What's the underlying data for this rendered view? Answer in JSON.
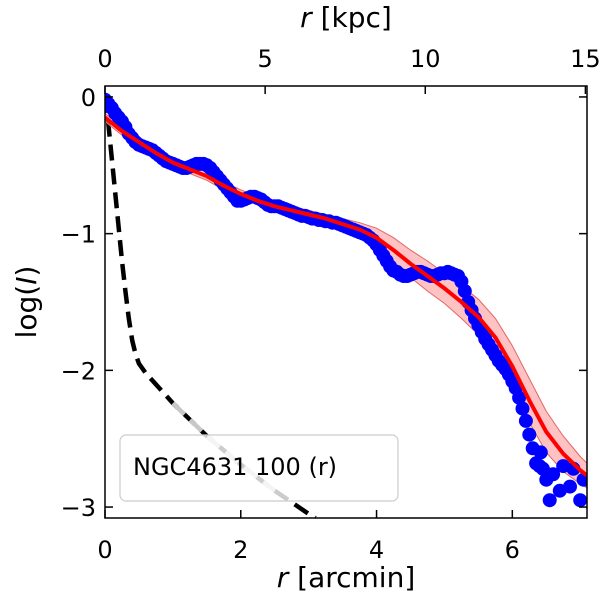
{
  "chart_data": {
    "type": "scatter",
    "title": "",
    "xlabel": "r [arcmin]",
    "xlabel_var": "r",
    "xlabel_unit": " [arcmin]",
    "x2label": "r [kpc]",
    "x2label_var": "r",
    "x2label_unit": " [kpc]",
    "ylabel": "log(I)",
    "ylabel_pre": "log(",
    "ylabel_var": "I",
    "ylabel_post": ")",
    "xlim": [
      0,
      7.1
    ],
    "ylim": [
      -3.08,
      0.08
    ],
    "x2lim": [
      0,
      15.05
    ],
    "xticks": [
      0,
      2,
      4,
      6
    ],
    "xtick_labels": [
      "0",
      "2",
      "4",
      "6"
    ],
    "x2ticks": [
      0,
      5,
      10,
      15
    ],
    "x2tick_labels": [
      "0",
      "5",
      "10",
      "15"
    ],
    "yticks": [
      0,
      -1,
      -2,
      -3
    ],
    "ytick_labels": [
      "0",
      "−1",
      "−2",
      "−3"
    ],
    "grid": false,
    "legend": {
      "text": "NGC4631 100 (r)",
      "placement": "lower-left"
    },
    "series": [
      {
        "role": "observed",
        "style": "markers",
        "color": "#0000ff",
        "points": [
          [
            0.0,
            -0.02
          ],
          [
            0.05,
            -0.05
          ],
          [
            0.1,
            -0.08
          ],
          [
            0.15,
            -0.12
          ],
          [
            0.2,
            -0.15
          ],
          [
            0.25,
            -0.18
          ],
          [
            0.3,
            -0.22
          ],
          [
            0.35,
            -0.27
          ],
          [
            0.4,
            -0.3
          ],
          [
            0.45,
            -0.33
          ],
          [
            0.5,
            -0.35
          ],
          [
            0.55,
            -0.36
          ],
          [
            0.6,
            -0.37
          ],
          [
            0.65,
            -0.38
          ],
          [
            0.7,
            -0.39
          ],
          [
            0.75,
            -0.41
          ],
          [
            0.8,
            -0.43
          ],
          [
            0.85,
            -0.45
          ],
          [
            0.9,
            -0.47
          ],
          [
            0.95,
            -0.48
          ],
          [
            1.0,
            -0.49
          ],
          [
            1.05,
            -0.5
          ],
          [
            1.1,
            -0.51
          ],
          [
            1.15,
            -0.52
          ],
          [
            1.2,
            -0.52
          ],
          [
            1.25,
            -0.51
          ],
          [
            1.3,
            -0.5
          ],
          [
            1.35,
            -0.49
          ],
          [
            1.4,
            -0.49
          ],
          [
            1.45,
            -0.49
          ],
          [
            1.5,
            -0.5
          ],
          [
            1.55,
            -0.52
          ],
          [
            1.6,
            -0.55
          ],
          [
            1.65,
            -0.58
          ],
          [
            1.7,
            -0.61
          ],
          [
            1.75,
            -0.64
          ],
          [
            1.8,
            -0.67
          ],
          [
            1.85,
            -0.7
          ],
          [
            1.9,
            -0.73
          ],
          [
            1.95,
            -0.76
          ],
          [
            2.0,
            -0.76
          ],
          [
            2.05,
            -0.75
          ],
          [
            2.1,
            -0.74
          ],
          [
            2.15,
            -0.73
          ],
          [
            2.2,
            -0.73
          ],
          [
            2.25,
            -0.74
          ],
          [
            2.3,
            -0.75
          ],
          [
            2.35,
            -0.77
          ],
          [
            2.4,
            -0.79
          ],
          [
            2.45,
            -0.8
          ],
          [
            2.5,
            -0.8
          ],
          [
            2.55,
            -0.8
          ],
          [
            2.6,
            -0.81
          ],
          [
            2.65,
            -0.82
          ],
          [
            2.7,
            -0.83
          ],
          [
            2.75,
            -0.84
          ],
          [
            2.8,
            -0.85
          ],
          [
            2.85,
            -0.86
          ],
          [
            2.9,
            -0.87
          ],
          [
            2.95,
            -0.87
          ],
          [
            3.0,
            -0.88
          ],
          [
            3.05,
            -0.89
          ],
          [
            3.1,
            -0.89
          ],
          [
            3.15,
            -0.9
          ],
          [
            3.2,
            -0.9
          ],
          [
            3.25,
            -0.91
          ],
          [
            3.3,
            -0.91
          ],
          [
            3.35,
            -0.92
          ],
          [
            3.4,
            -0.92
          ],
          [
            3.45,
            -0.93
          ],
          [
            3.5,
            -0.94
          ],
          [
            3.55,
            -0.95
          ],
          [
            3.6,
            -0.96
          ],
          [
            3.65,
            -0.97
          ],
          [
            3.7,
            -0.98
          ],
          [
            3.75,
            -0.99
          ],
          [
            3.8,
            -1.0
          ],
          [
            3.85,
            -1.01
          ],
          [
            3.9,
            -1.03
          ],
          [
            3.95,
            -1.05
          ],
          [
            4.0,
            -1.08
          ],
          [
            4.05,
            -1.12
          ],
          [
            4.1,
            -1.16
          ],
          [
            4.15,
            -1.2
          ],
          [
            4.2,
            -1.24
          ],
          [
            4.25,
            -1.27
          ],
          [
            4.3,
            -1.28
          ],
          [
            4.35,
            -1.3
          ],
          [
            4.4,
            -1.31
          ],
          [
            4.45,
            -1.31
          ],
          [
            4.5,
            -1.3
          ],
          [
            4.55,
            -1.29
          ],
          [
            4.6,
            -1.28
          ],
          [
            4.65,
            -1.28
          ],
          [
            4.7,
            -1.29
          ],
          [
            4.75,
            -1.3
          ],
          [
            4.8,
            -1.31
          ],
          [
            4.85,
            -1.31
          ],
          [
            4.9,
            -1.3
          ],
          [
            4.95,
            -1.29
          ],
          [
            5.0,
            -1.29
          ],
          [
            5.05,
            -1.28
          ],
          [
            5.1,
            -1.29
          ],
          [
            5.15,
            -1.3
          ],
          [
            5.2,
            -1.31
          ],
          [
            5.25,
            -1.35
          ],
          [
            5.3,
            -1.42
          ],
          [
            5.35,
            -1.5
          ],
          [
            5.4,
            -1.56
          ],
          [
            5.45,
            -1.62
          ],
          [
            5.5,
            -1.67
          ],
          [
            5.55,
            -1.72
          ],
          [
            5.6,
            -1.77
          ],
          [
            5.65,
            -1.81
          ],
          [
            5.7,
            -1.85
          ],
          [
            5.75,
            -1.89
          ],
          [
            5.8,
            -1.93
          ],
          [
            5.85,
            -1.96
          ],
          [
            5.9,
            -1.99
          ],
          [
            5.95,
            -2.03
          ],
          [
            6.0,
            -2.08
          ],
          [
            6.05,
            -2.13
          ],
          [
            6.1,
            -2.2
          ],
          [
            6.15,
            -2.28
          ],
          [
            6.2,
            -2.37
          ],
          [
            6.25,
            -2.47
          ],
          [
            6.3,
            -2.57
          ],
          [
            6.35,
            -2.68
          ],
          [
            6.4,
            -2.7
          ],
          [
            6.45,
            -2.72
          ],
          [
            6.5,
            -2.8
          ],
          [
            6.55,
            -2.95
          ],
          [
            6.6,
            -2.76
          ],
          [
            6.7,
            -2.88
          ],
          [
            6.75,
            -2.7
          ],
          [
            6.85,
            -2.85
          ],
          [
            6.9,
            -2.72
          ],
          [
            7.0,
            -2.95
          ],
          [
            7.05,
            -2.8
          ],
          [
            6.42,
            -2.6
          ]
        ]
      },
      {
        "role": "model",
        "style": "line",
        "color": "#ff0000",
        "x": [
          0.0,
          0.25,
          0.5,
          0.75,
          1.0,
          1.25,
          1.5,
          1.75,
          2.0,
          2.25,
          2.5,
          2.75,
          3.0,
          3.25,
          3.5,
          3.75,
          4.0,
          4.25,
          4.5,
          4.75,
          5.0,
          5.25,
          5.5,
          5.75,
          6.0,
          6.25,
          6.5,
          6.75,
          7.0,
          7.1
        ],
        "y": [
          -0.15,
          -0.25,
          -0.33,
          -0.41,
          -0.48,
          -0.53,
          -0.58,
          -0.65,
          -0.71,
          -0.76,
          -0.8,
          -0.83,
          -0.86,
          -0.89,
          -0.93,
          -0.97,
          -1.03,
          -1.12,
          -1.22,
          -1.31,
          -1.4,
          -1.5,
          -1.61,
          -1.76,
          -1.97,
          -2.22,
          -2.45,
          -2.61,
          -2.73,
          -2.77
        ],
        "band": [
          0.03,
          0.03,
          0.03,
          0.03,
          0.03,
          0.03,
          0.03,
          0.03,
          0.03,
          0.03,
          0.03,
          0.03,
          0.03,
          0.03,
          0.04,
          0.05,
          0.07,
          0.09,
          0.1,
          0.11,
          0.11,
          0.12,
          0.13,
          0.14,
          0.15,
          0.16,
          0.15,
          0.13,
          0.1,
          0.09
        ]
      },
      {
        "role": "psf",
        "style": "dashed",
        "color": "#000000",
        "faded_color": "#c8c8c8",
        "x": [
          0.0,
          0.05,
          0.1,
          0.15,
          0.2,
          0.25,
          0.3,
          0.35,
          0.4,
          0.45,
          0.5,
          0.6,
          0.8,
          1.0,
          1.5,
          2.0,
          2.5,
          3.0,
          3.1
        ],
        "y": [
          0.0,
          -0.2,
          -0.45,
          -0.7,
          -0.95,
          -1.2,
          -1.42,
          -1.62,
          -1.78,
          -1.88,
          -1.95,
          -2.02,
          -2.13,
          -2.24,
          -2.48,
          -2.69,
          -2.88,
          -3.05,
          -3.08
        ],
        "faded_range": [
          1.0,
          2.5
        ]
      }
    ]
  }
}
